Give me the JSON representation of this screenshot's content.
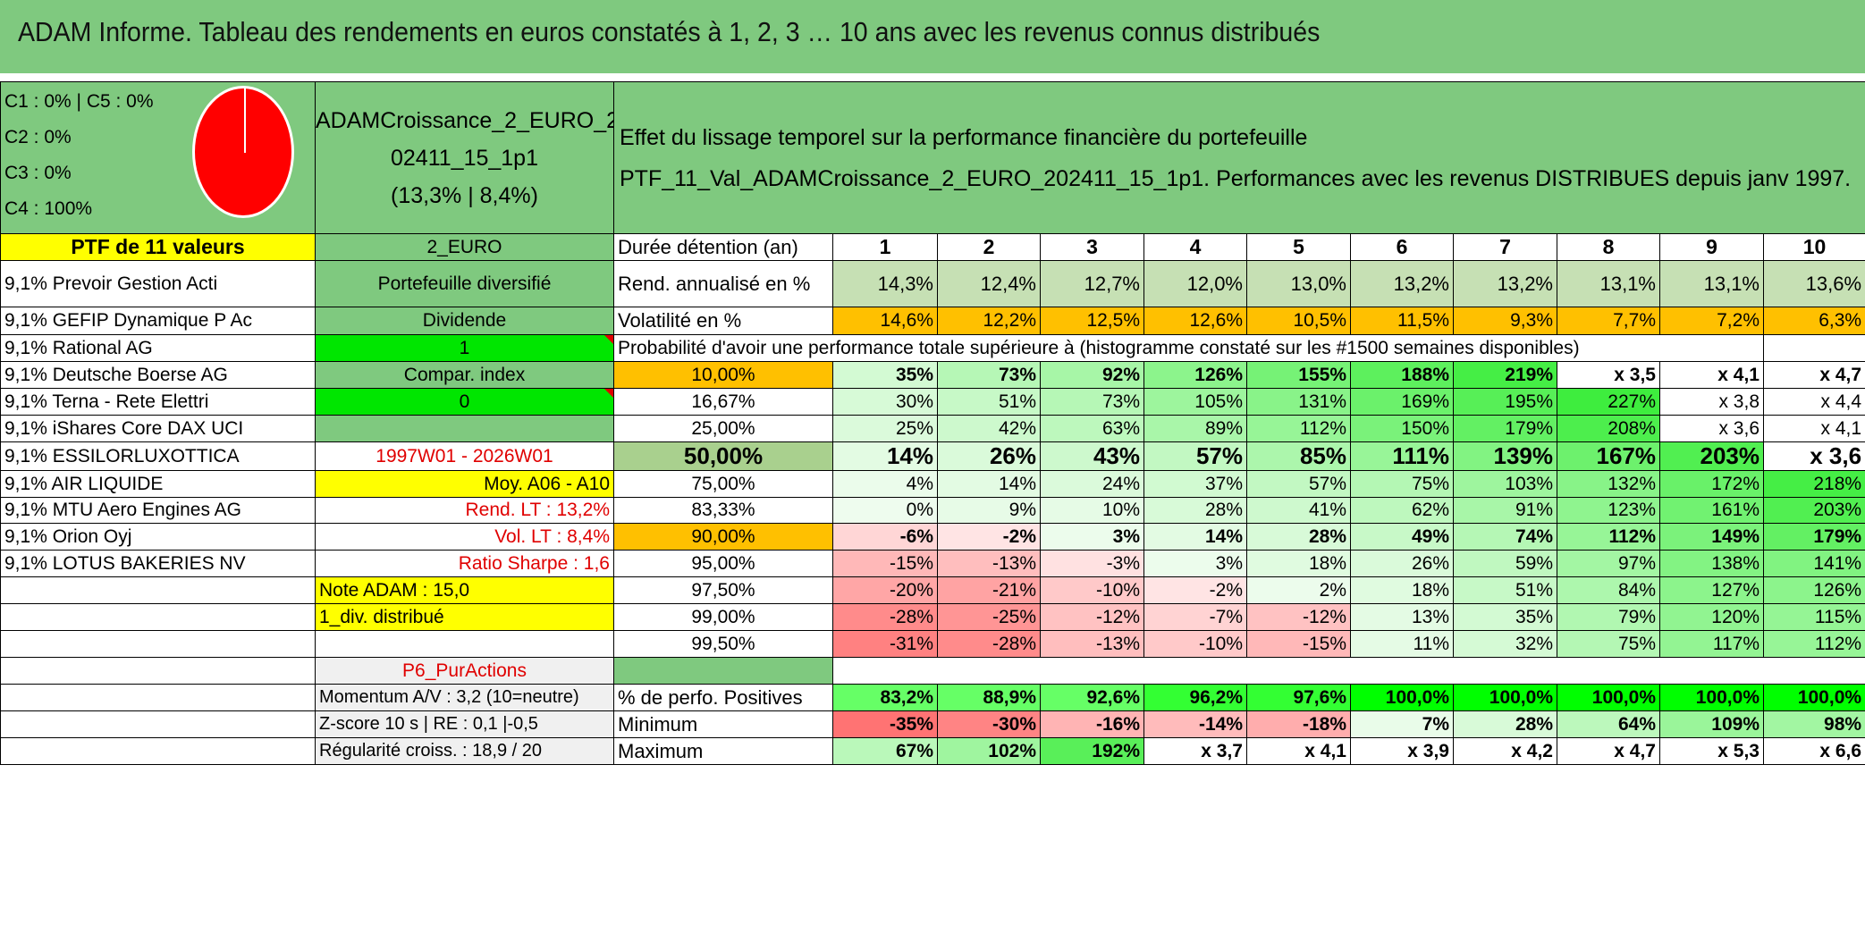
{
  "title": "ADAM Informe. Tableau des rendements en euros constatés à 1, 2, 3 … 10 ans avec les revenus connus distribués",
  "classes": [
    "C1 : 0% | C5 : 0%",
    "C2 : 0%",
    "C3 : 0%",
    "C4 : 100%"
  ],
  "pie_color": "#ff0000",
  "portfolio_name": [
    "ADAMCroissance_2_EURO_2",
    "02411_15_1p1",
    "(13,3% | 8,4%)"
  ],
  "effet_text": [
    "Effet du lissage temporel sur la performance financière du portefeuille",
    "PTF_11_Val_ADAMCroissance_2_EURO_202411_15_1p1. Performances avec les revenus DISTRIBUES depuis janv 1997."
  ],
  "ptf_label": "PTF de 11 valeurs",
  "currency": "2_EURO",
  "duree_label": "Durée détention (an)",
  "years": [
    "1",
    "2",
    "3",
    "4",
    "5",
    "6",
    "7",
    "8",
    "9",
    "10"
  ],
  "holdings": [
    "9,1% Prevoir Gestion Acti",
    "9,1% GEFIP Dynamique P Ac",
    "9,1% Rational AG",
    "9,1% Deutsche Boerse AG",
    "9,1% Terna - Rete Elettri",
    "9,1% iShares Core DAX UCI",
    "9,1% ESSILORLUXOTTICA",
    "9,1% AIR LIQUIDE",
    "9,1% MTU Aero Engines AG",
    "9,1% Orion Oyj",
    "9,1% LOTUS BAKERIES NV"
  ],
  "info": {
    "diversifie": "Portefeuille diversifié",
    "dividende": "Dividende",
    "dividende_val": "1",
    "compar": "Compar. index",
    "compar_val": "0",
    "periode": "1997W01 - 2026W01",
    "moy": "Moy. A06 - A10",
    "rend_lt": "Rend. LT : 13,2%",
    "vol_lt": "Vol. LT : 8,4%",
    "sharpe": "Ratio Sharpe : 1,6",
    "note": "Note ADAM : 15,0",
    "div_distrib": "1_div. distribué",
    "p6": "P6_PurActions",
    "momentum": "Momentum A/V : 3,2 (10=neutre)",
    "zscore": "Z-score 10 s | RE : 0,1 |-0,5",
    "regularite": "Régularité croiss. : 18,9 / 20"
  },
  "rend": {
    "label": "Rend. annualisé en %",
    "values": [
      "14,3%",
      "12,4%",
      "12,7%",
      "12,0%",
      "13,0%",
      "13,2%",
      "13,2%",
      "13,1%",
      "13,1%",
      "13,6%"
    ]
  },
  "vol": {
    "label": "Volatilité en %",
    "values": [
      "14,6%",
      "12,2%",
      "12,5%",
      "12,6%",
      "10,5%",
      "11,5%",
      "9,3%",
      "7,7%",
      "7,2%",
      "6,3%"
    ]
  },
  "proba_title": "Probabilité d'avoir une performance totale supérieure à (histogramme constaté sur les #1500 semaines disponibles)",
  "proba": [
    {
      "pct": "10,00%",
      "values": [
        "35%",
        "73%",
        "92%",
        "126%",
        "155%",
        "188%",
        "219%",
        "x 3,5",
        "x 4,1",
        "x 4,7"
      ]
    },
    {
      "pct": "16,67%",
      "values": [
        "30%",
        "51%",
        "73%",
        "105%",
        "131%",
        "169%",
        "195%",
        "227%",
        "x 3,8",
        "x 4,4"
      ]
    },
    {
      "pct": "25,00%",
      "values": [
        "25%",
        "42%",
        "63%",
        "89%",
        "112%",
        "150%",
        "179%",
        "208%",
        "x 3,6",
        "x 4,1"
      ]
    },
    {
      "pct": "50,00%",
      "values": [
        "14%",
        "26%",
        "43%",
        "57%",
        "85%",
        "111%",
        "139%",
        "167%",
        "203%",
        "x 3,6"
      ]
    },
    {
      "pct": "75,00%",
      "values": [
        "4%",
        "14%",
        "24%",
        "37%",
        "57%",
        "75%",
        "103%",
        "132%",
        "172%",
        "218%"
      ]
    },
    {
      "pct": "83,33%",
      "values": [
        "0%",
        "9%",
        "10%",
        "28%",
        "41%",
        "62%",
        "91%",
        "123%",
        "161%",
        "203%"
      ]
    },
    {
      "pct": "90,00%",
      "values": [
        "-6%",
        "-2%",
        "3%",
        "14%",
        "28%",
        "49%",
        "74%",
        "112%",
        "149%",
        "179%"
      ]
    },
    {
      "pct": "95,00%",
      "values": [
        "-15%",
        "-13%",
        "-3%",
        "3%",
        "18%",
        "26%",
        "59%",
        "97%",
        "138%",
        "141%"
      ]
    },
    {
      "pct": "97,50%",
      "values": [
        "-20%",
        "-21%",
        "-10%",
        "-2%",
        "2%",
        "18%",
        "51%",
        "84%",
        "127%",
        "126%"
      ]
    },
    {
      "pct": "99,00%",
      "values": [
        "-28%",
        "-25%",
        "-12%",
        "-7%",
        "-12%",
        "13%",
        "35%",
        "79%",
        "120%",
        "115%"
      ]
    },
    {
      "pct": "99,50%",
      "values": [
        "-31%",
        "-28%",
        "-13%",
        "-10%",
        "-15%",
        "11%",
        "32%",
        "75%",
        "117%",
        "112%"
      ]
    }
  ],
  "positives": {
    "label": "% de perfo. Positives",
    "values": [
      "83,2%",
      "88,9%",
      "92,6%",
      "96,2%",
      "97,6%",
      "100,0%",
      "100,0%",
      "100,0%",
      "100,0%",
      "100,0%"
    ]
  },
  "minimum": {
    "label": "Minimum",
    "values": [
      "-35%",
      "-30%",
      "-16%",
      "-14%",
      "-18%",
      "7%",
      "28%",
      "64%",
      "109%",
      "98%"
    ]
  },
  "maximum": {
    "label": "Maximum",
    "values": [
      "67%",
      "102%",
      "192%",
      "x 3,7",
      "x 4,1",
      "x 3,9",
      "x 4,2",
      "x 4,7",
      "x 5,3",
      "x 6,6"
    ]
  },
  "colors": {
    "green_header": "#7fc97f",
    "yellow": "#ffff00",
    "bright_green": "#00e600",
    "orange": "#ffc000",
    "red_text": "#e00000"
  }
}
